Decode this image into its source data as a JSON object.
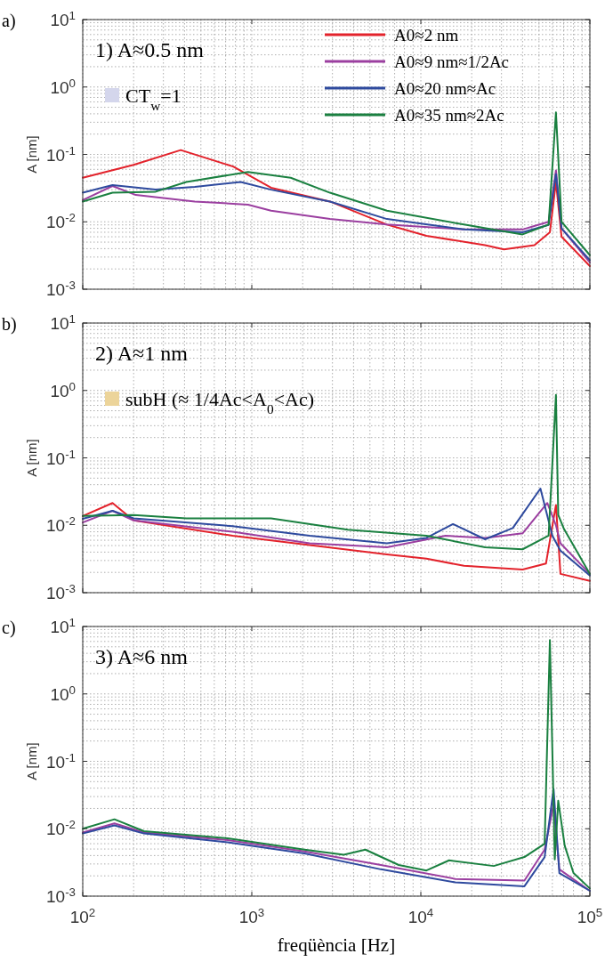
{
  "chart_data": [
    {
      "type": "line",
      "ylabel": "A [nm]",
      "log": "xy",
      "grid": true,
      "legend": "top right",
      "tick_labels": "y",
      "xlim": [
        100,
        100000
      ],
      "ylim": [
        0.001,
        10
      ],
      "xticks": [
        {
          "value": 100,
          "label": null
        },
        {
          "value": 1000,
          "label": null
        },
        {
          "value": 10000,
          "label": null
        },
        {
          "value": 100000,
          "label": null
        }
      ],
      "yticks": [
        {
          "value": 0.001,
          "label": "10$^{-3}$"
        },
        {
          "value": 0.01,
          "label": "10$^{-2}$"
        },
        {
          "value": 0.1,
          "label": "10$^{-1}$"
        },
        {
          "value": 1,
          "label": "10$^{0}$"
        },
        {
          "value": 10,
          "label": "10$^{1}$"
        }
      ],
      "annotations": [
        "a)",
        "1) A≈0.5 nm",
        "CT$_{w}$=1"
      ],
      "series": [
        {
          "name": "A0≈2 nm",
          "color": "#e3222b",
          "x": [
            100,
            200,
            380,
            776,
            1300,
            2900,
            6300,
            10800,
            24000,
            31000,
            47000,
            58000,
            63000,
            68000,
            100000
          ],
          "values": [
            0.045,
            0.07,
            0.116,
            0.066,
            0.032,
            0.02,
            0.0091,
            0.0062,
            0.0045,
            0.0039,
            0.0045,
            0.007,
            0.039,
            0.006,
            0.0022
          ]
        },
        {
          "name": "A0≈9 nm≈1/2Ac",
          "color": "#9b3fa0",
          "x": [
            100,
            150,
            206,
            460,
            950,
            1300,
            2900,
            6300,
            18000,
            40000,
            57000,
            63000,
            68000,
            100000
          ],
          "values": [
            0.021,
            0.034,
            0.025,
            0.02,
            0.018,
            0.0146,
            0.011,
            0.0091,
            0.0077,
            0.0077,
            0.01,
            0.058,
            0.008,
            0.0025
          ]
        },
        {
          "name": "A0≈20 nm≈Ac",
          "color": "#2e4a9e",
          "x": [
            100,
            150,
            270,
            460,
            860,
            1300,
            2900,
            6300,
            18000,
            40000,
            57000,
            63000,
            68000,
            100000
          ],
          "values": [
            0.027,
            0.035,
            0.03,
            0.033,
            0.039,
            0.03,
            0.02,
            0.011,
            0.0077,
            0.007,
            0.009,
            0.051,
            0.008,
            0.0027
          ]
        },
        {
          "name": "A0≈35 nm≈2Ac",
          "color": "#1a8040",
          "x": [
            100,
            150,
            270,
            410,
            950,
            1700,
            2900,
            6300,
            18000,
            40000,
            57000,
            63000,
            68000,
            100000
          ],
          "values": [
            0.02,
            0.027,
            0.028,
            0.039,
            0.055,
            0.045,
            0.027,
            0.0146,
            0.0091,
            0.0065,
            0.0091,
            0.42,
            0.01,
            0.0032
          ]
        }
      ]
    },
    {
      "type": "line",
      "ylabel": "A [nm]",
      "log": "xy",
      "grid": true,
      "tick_labels": "y",
      "xlim": [
        100,
        100000
      ],
      "ylim": [
        0.001,
        10
      ],
      "xticks": [
        {
          "value": 100,
          "label": null
        },
        {
          "value": 1000,
          "label": null
        },
        {
          "value": 10000,
          "label": null
        },
        {
          "value": 100000,
          "label": null
        }
      ],
      "yticks": [
        {
          "value": 0.001,
          "label": "10$^{-3}$"
        },
        {
          "value": 0.01,
          "label": "10$^{-2}$"
        },
        {
          "value": 0.1,
          "label": "10$^{-1}$"
        },
        {
          "value": 1,
          "label": "10$^{0}$"
        },
        {
          "value": 10,
          "label": "10$^{1}$"
        }
      ],
      "annotations": [
        "b)",
        "2) A≈1 nm",
        "subH (≈ 1/4Ac<A$_{0}$<Ac)"
      ],
      "series": [
        {
          "color": "#e3222b",
          "x": [
            100,
            150,
            200,
            770,
            2200,
            6300,
            10800,
            18000,
            40000,
            55000,
            63000,
            67000,
            100000
          ],
          "values": [
            0.0137,
            0.0214,
            0.0118,
            0.007,
            0.0051,
            0.0037,
            0.0032,
            0.0025,
            0.0022,
            0.0027,
            0.02,
            0.0019,
            0.0015
          ]
        },
        {
          "color": "#9b3fa0",
          "x": [
            100,
            150,
            200,
            770,
            2200,
            6300,
            14000,
            24000,
            40000,
            56000,
            63000,
            67000,
            100000
          ],
          "values": [
            0.011,
            0.0164,
            0.0118,
            0.008,
            0.0054,
            0.0047,
            0.007,
            0.0065,
            0.0076,
            0.0214,
            0.01,
            0.0054,
            0.0019
          ]
        },
        {
          "color": "#2e4a9e",
          "x": [
            100,
            150,
            200,
            770,
            2200,
            6300,
            10800,
            15500,
            24000,
            35000,
            51000,
            60000,
            67000,
            100000
          ],
          "values": [
            0.0125,
            0.0164,
            0.0127,
            0.0097,
            0.007,
            0.0054,
            0.0065,
            0.0104,
            0.0062,
            0.0091,
            0.035,
            0.007,
            0.0042,
            0.0018
          ]
        },
        {
          "color": "#1a8040",
          "x": [
            100,
            200,
            410,
            1300,
            3700,
            10800,
            24000,
            40000,
            57000,
            63000,
            65000,
            70000,
            100000
          ],
          "values": [
            0.0138,
            0.0142,
            0.0127,
            0.0127,
            0.0086,
            0.007,
            0.0047,
            0.0044,
            0.007,
            0.86,
            0.0142,
            0.009,
            0.0019
          ]
        }
      ]
    },
    {
      "type": "line",
      "xlabel": "freqüència [Hz]",
      "ylabel": "A [nm]",
      "log": "xy",
      "grid": true,
      "xlim": [
        100,
        100000
      ],
      "ylim": [
        0.001,
        10
      ],
      "xticks": [
        {
          "value": 100,
          "label": "10$^{2}$"
        },
        {
          "value": 1000,
          "label": "10$^{3}$"
        },
        {
          "value": 10000,
          "label": "10$^{4}$"
        },
        {
          "value": 100000,
          "label": "10$^{5}$"
        }
      ],
      "yticks": [
        {
          "value": 0.001,
          "label": "10$^{-3}$"
        },
        {
          "value": 0.01,
          "label": "10$^{-2}$"
        },
        {
          "value": 0.1,
          "label": "10$^{-1}$"
        },
        {
          "value": 1,
          "label": "10$^{0}$"
        },
        {
          "value": 10,
          "label": "10$^{1}$"
        }
      ],
      "annotations": [
        "c)",
        "3) A≈6 nm"
      ],
      "series": [
        {
          "color": "#9b3fa0",
          "x": [
            100,
            154,
            230,
            720,
            2050,
            5800,
            16000,
            41000,
            54000,
            61000,
            66000,
            100000
          ],
          "values": [
            0.0088,
            0.012,
            0.0088,
            0.0068,
            0.0046,
            0.0029,
            0.0018,
            0.0017,
            0.0049,
            0.023,
            0.0025,
            0.0012
          ]
        },
        {
          "color": "#2e4a9e",
          "x": [
            100,
            154,
            230,
            720,
            2050,
            5800,
            16000,
            41000,
            54000,
            61000,
            66000,
            100000
          ],
          "values": [
            0.0085,
            0.0112,
            0.0085,
            0.0063,
            0.0043,
            0.0025,
            0.0016,
            0.0014,
            0.0038,
            0.039,
            0.0022,
            0.0012
          ]
        },
        {
          "color": "#1a8040",
          "x": [
            100,
            154,
            230,
            720,
            2050,
            3500,
            4700,
            7400,
            10800,
            14700,
            27000,
            41000,
            54000,
            58000,
            62000,
            65000,
            71000,
            80000,
            100000
          ],
          "values": [
            0.01,
            0.0138,
            0.0092,
            0.0072,
            0.0049,
            0.0041,
            0.0049,
            0.0029,
            0.0024,
            0.0034,
            0.0028,
            0.0038,
            0.006,
            6.3,
            0.0035,
            0.026,
            0.0056,
            0.0022,
            0.0013
          ]
        }
      ]
    }
  ]
}
